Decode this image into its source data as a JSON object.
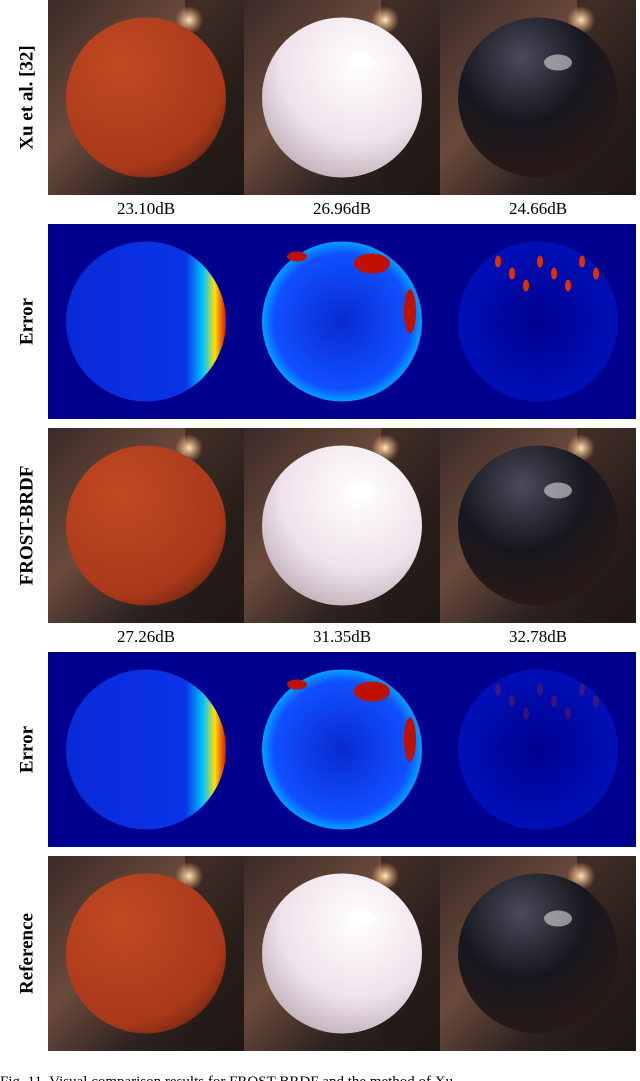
{
  "rows": [
    {
      "label": "Xu et al. [32]",
      "kind": "render"
    },
    {
      "label": "Error",
      "kind": "error"
    },
    {
      "label": "FROST-BRDF",
      "kind": "render"
    },
    {
      "label": "Error",
      "kind": "error"
    },
    {
      "label": "Reference",
      "kind": "render"
    }
  ],
  "psnr_rows": [
    [
      "23.10dB",
      "26.96dB",
      "24.66dB"
    ],
    [
      "27.26dB",
      "31.35dB",
      "32.78dB"
    ]
  ],
  "caption": "Fig. 11.   Visual comparison results for FROST-BRDF and the method of Xu"
}
